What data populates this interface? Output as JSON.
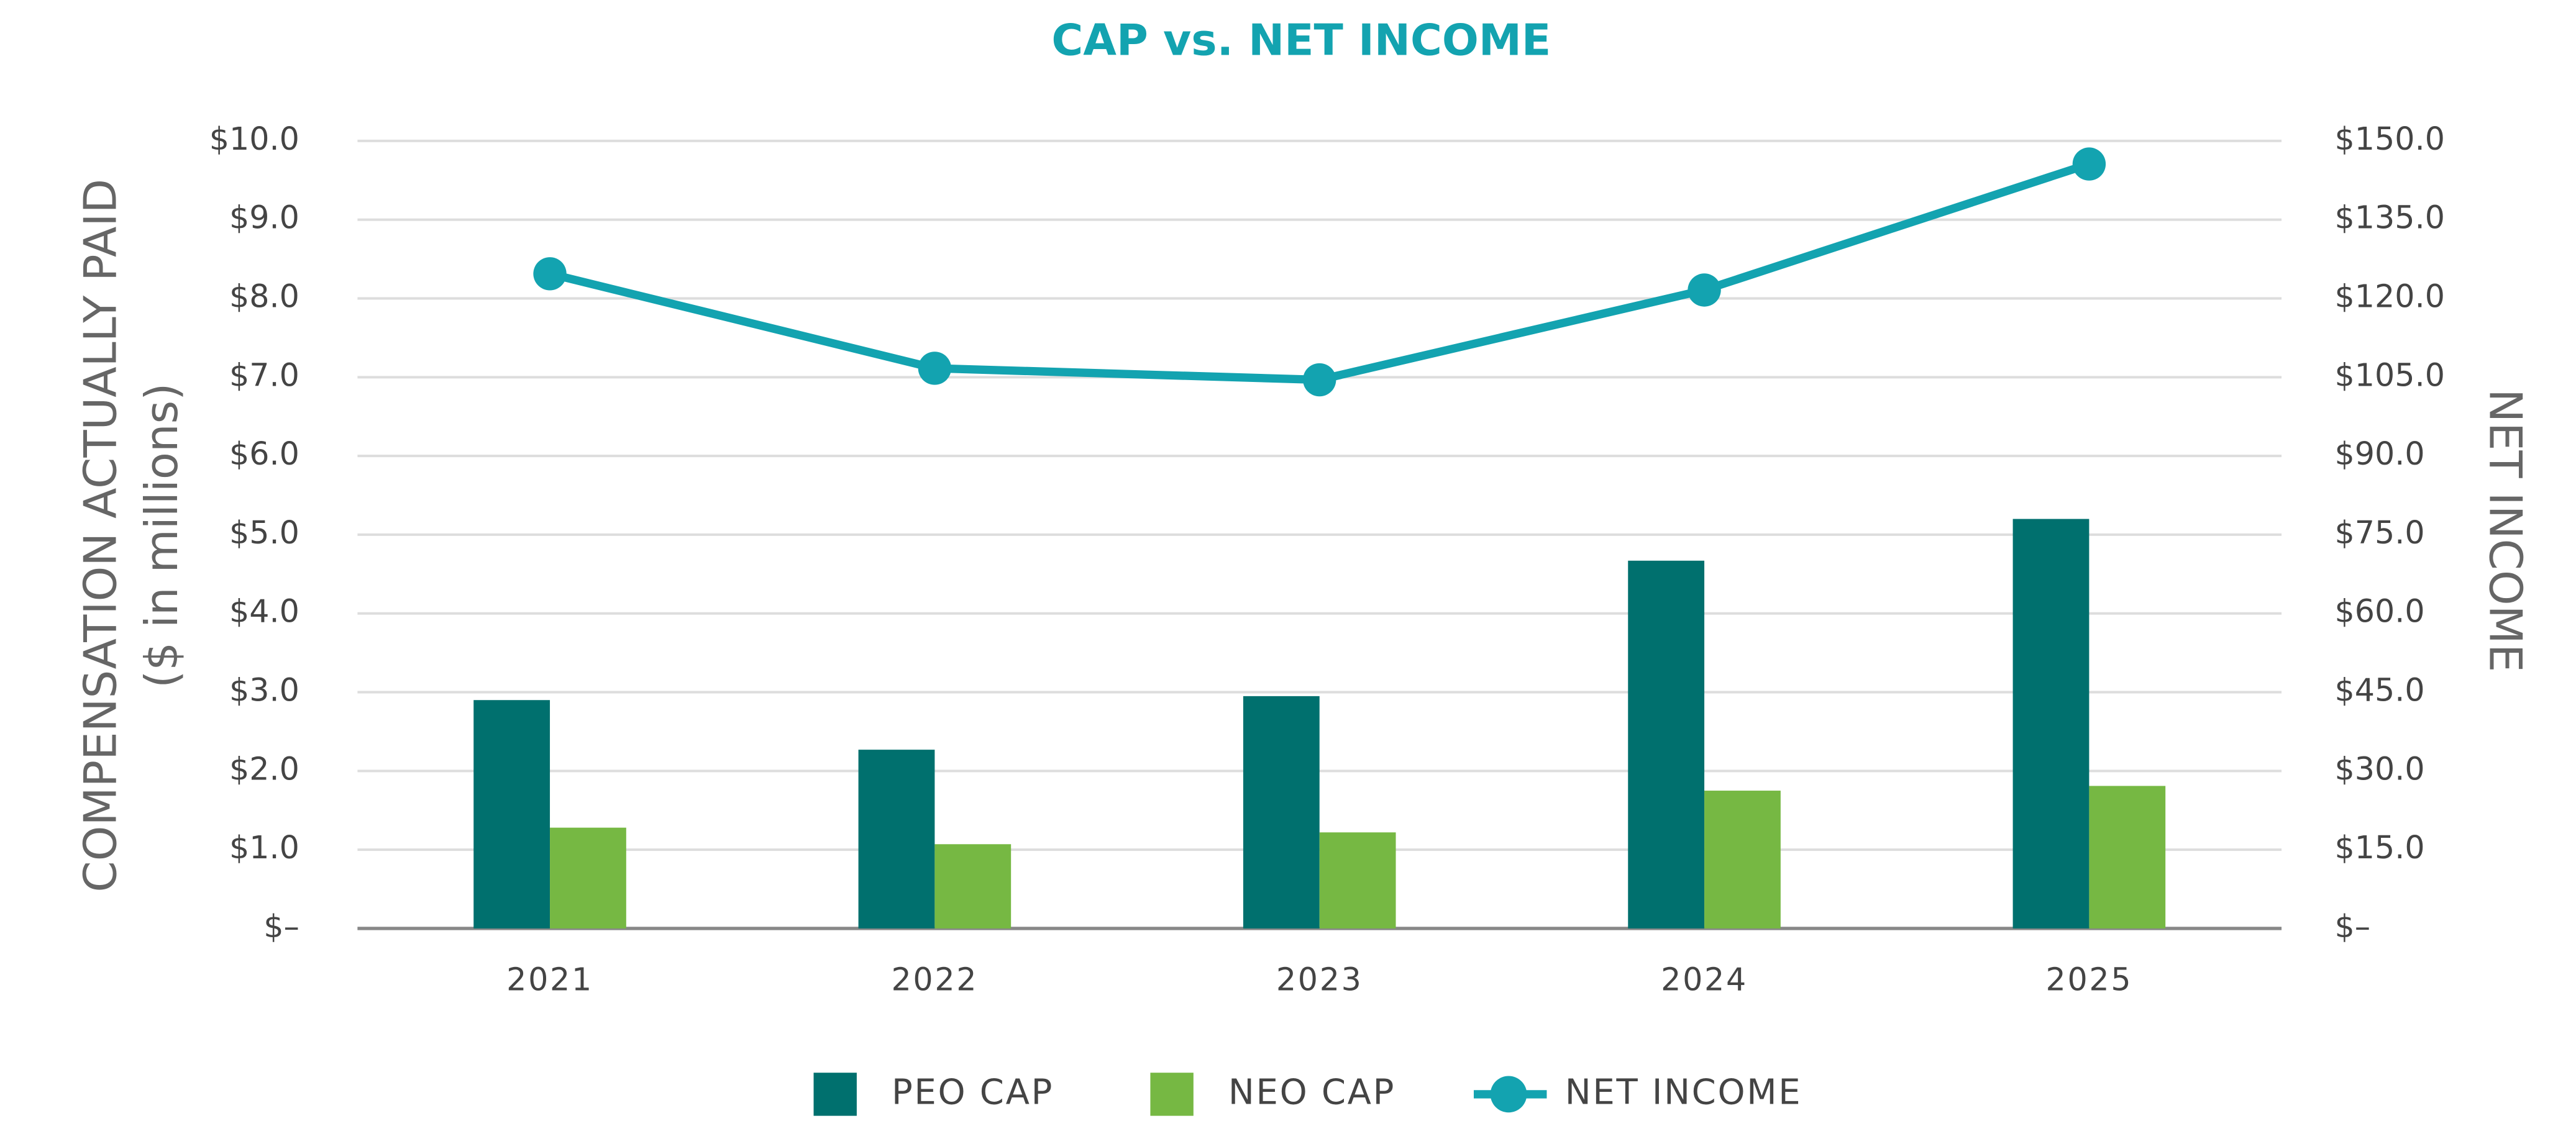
{
  "chart_data": {
    "type": "bar-line",
    "title": "CAP vs. NET INCOME",
    "ylabel": "COMPENSATION ACTUALLY PAID",
    "ylabel_sub": "($ in millions)",
    "y2label": "NET INCOME",
    "categories": [
      "2021",
      "2022",
      "2023",
      "2024",
      "2025"
    ],
    "series": [
      {
        "name": "PEO CAP",
        "type": "bar",
        "color": "#00706e",
        "values": [
          2.9,
          2.27,
          2.95,
          4.67,
          5.2
        ]
      },
      {
        "name": "NEO CAP",
        "type": "bar",
        "color": "#76b843",
        "values": [
          1.28,
          1.07,
          1.22,
          1.75,
          1.81
        ]
      },
      {
        "name": "NET INCOME",
        "type": "line",
        "axis": "y2",
        "color": "#13a3b0",
        "values": [
          124.7,
          106.7,
          104.5,
          121.6,
          145.6
        ]
      }
    ],
    "ylim": [
      0,
      10
    ],
    "yticks": [
      {
        "value": 0,
        "label": "$–"
      },
      {
        "value": 1,
        "label": "$1.0"
      },
      {
        "value": 2,
        "label": "$2.0"
      },
      {
        "value": 3,
        "label": "$3.0"
      },
      {
        "value": 4,
        "label": "$4.0"
      },
      {
        "value": 5,
        "label": "$5.0"
      },
      {
        "value": 6,
        "label": "$6.0"
      },
      {
        "value": 7,
        "label": "$7.0"
      },
      {
        "value": 8,
        "label": "$8.0"
      },
      {
        "value": 9,
        "label": "$9.0"
      },
      {
        "value": 10,
        "label": "$10.0"
      }
    ],
    "y2lim": [
      0,
      150
    ],
    "y2ticks": [
      {
        "value": 0,
        "label": "$–"
      },
      {
        "value": 15,
        "label": "$15.0"
      },
      {
        "value": 30,
        "label": "$30.0"
      },
      {
        "value": 45,
        "label": "$45.0"
      },
      {
        "value": 60,
        "label": "$60.0"
      },
      {
        "value": 75,
        "label": "$75.0"
      },
      {
        "value": 90,
        "label": "$90.0"
      },
      {
        "value": 105,
        "label": "$105.0"
      },
      {
        "value": 120,
        "label": "$120.0"
      },
      {
        "value": 135,
        "label": "$135.0"
      },
      {
        "value": 150,
        "label": "$150.0"
      }
    ],
    "grid": true,
    "legend": "bottom"
  }
}
